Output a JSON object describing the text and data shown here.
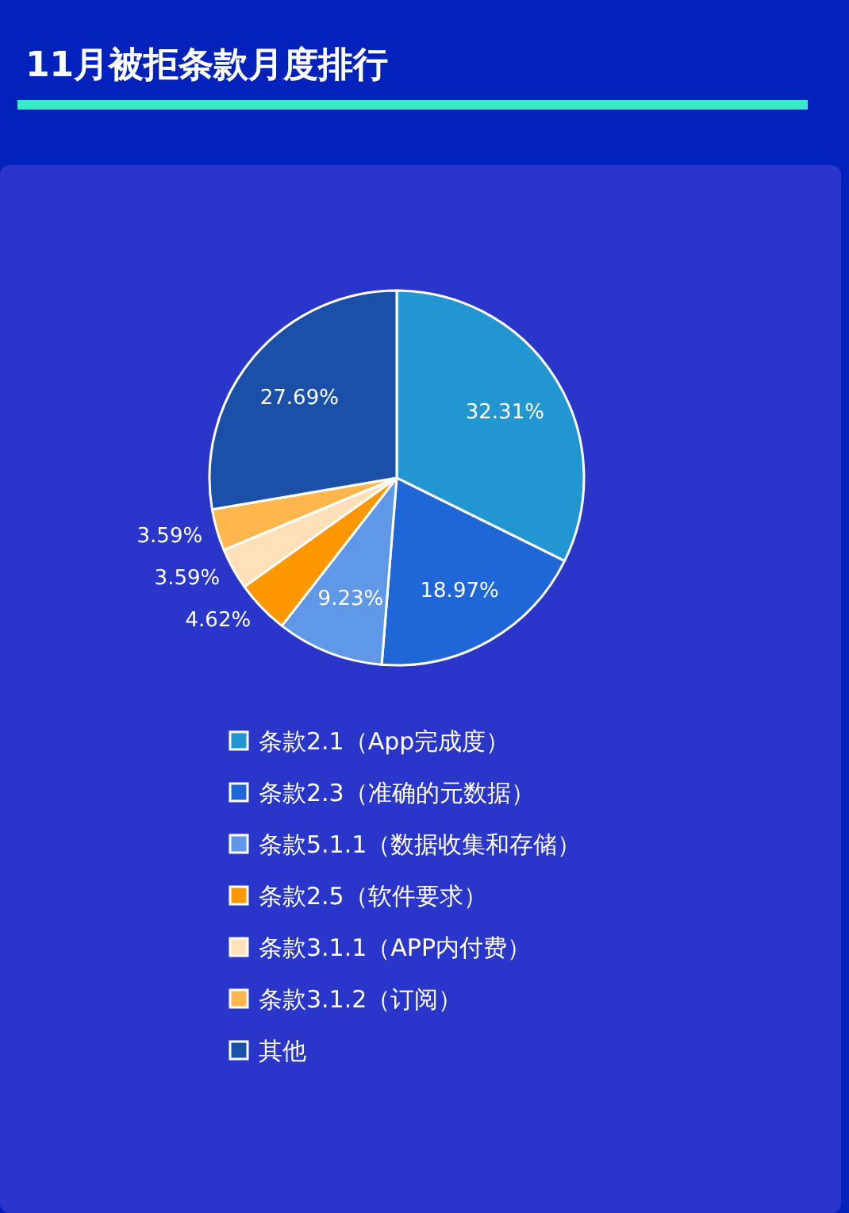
{
  "chart_data": {
    "type": "pie",
    "title": "11月被拒条款月度排行",
    "categories": [
      "条款2.1（App完成度）",
      "条款2.3（准确的元数据）",
      "条款5.1.1（数据收集和存储）",
      "条款2.5（软件要求）",
      "条款3.1.1（APP内付费）",
      "条款3.1.2（订阅）",
      "其他"
    ],
    "values": [
      32.31,
      18.97,
      9.23,
      4.62,
      3.59,
      3.59,
      27.69
    ],
    "colors": [
      "#2196d0",
      "#1f66d6",
      "#5e98e6",
      "#ff9800",
      "#ffe0b8",
      "#ffb74d",
      "#1a50a8"
    ],
    "value_labels": [
      "32.31%",
      "18.97%",
      "9.23%",
      "4.62%",
      "3.59%",
      "3.59%",
      "27.69%"
    ],
    "legend": "bottom"
  }
}
